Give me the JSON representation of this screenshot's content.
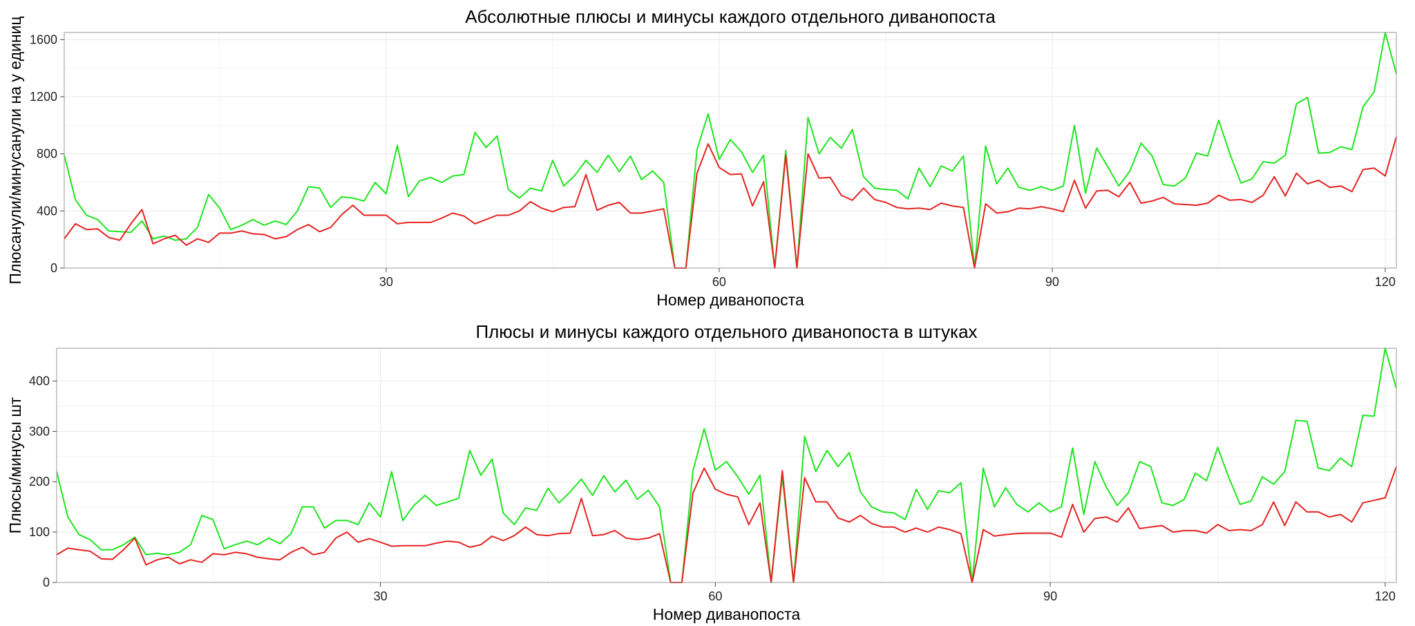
{
  "chart_data": [
    {
      "type": "line",
      "title": "Абсолютные плюсы и минусы каждого отдельного диванопоста",
      "xlabel": "Номер диванопоста",
      "ylabel": "Плюсанули/минусанули на y единиц",
      "xlim": [
        1,
        121
      ],
      "ylim": [
        0,
        1650
      ],
      "x_ticks": [
        30,
        60,
        90,
        120
      ],
      "y_ticks": [
        0,
        400,
        800,
        1200,
        1600
      ],
      "grid": true,
      "x": [
        1,
        2,
        3,
        4,
        5,
        6,
        7,
        8,
        9,
        10,
        11,
        12,
        13,
        14,
        15,
        16,
        17,
        18,
        19,
        20,
        21,
        22,
        23,
        24,
        25,
        26,
        27,
        28,
        29,
        30,
        31,
        32,
        33,
        34,
        35,
        36,
        37,
        38,
        39,
        40,
        41,
        42,
        43,
        44,
        45,
        46,
        47,
        48,
        49,
        50,
        51,
        52,
        53,
        54,
        55,
        56,
        57,
        58,
        59,
        60,
        61,
        62,
        63,
        64,
        65,
        66,
        67,
        68,
        69,
        70,
        71,
        72,
        73,
        74,
        75,
        76,
        77,
        78,
        79,
        80,
        81,
        82,
        83,
        84,
        85,
        86,
        87,
        88,
        89,
        90,
        91,
        92,
        93,
        94,
        95,
        96,
        97,
        98,
        99,
        100,
        101,
        102,
        103,
        104,
        105,
        106,
        107,
        108,
        109,
        110,
        111,
        112,
        113,
        114,
        115,
        116,
        117,
        118,
        119,
        120,
        121
      ],
      "series": [
        {
          "color": "#1ee61e",
          "values": [
            790,
            480,
            370,
            340,
            260,
            255,
            250,
            330,
            205,
            225,
            195,
            205,
            285,
            515,
            420,
            270,
            300,
            340,
            300,
            330,
            305,
            400,
            570,
            560,
            425,
            500,
            490,
            470,
            600,
            520,
            860,
            500,
            610,
            635,
            600,
            645,
            655,
            950,
            845,
            925,
            550,
            490,
            560,
            540,
            755,
            575,
            650,
            755,
            670,
            790,
            675,
            785,
            620,
            680,
            600,
            0,
            0,
            830,
            1080,
            760,
            900,
            815,
            670,
            790,
            0,
            825,
            0,
            1055,
            800,
            915,
            840,
            970,
            640,
            560,
            550,
            545,
            485,
            700,
            570,
            715,
            680,
            785,
            0,
            855,
            590,
            700,
            565,
            545,
            570,
            545,
            575,
            1000,
            525,
            840,
            710,
            575,
            680,
            875,
            785,
            585,
            575,
            630,
            805,
            785,
            1035,
            800,
            595,
            625,
            745,
            735,
            790,
            1150,
            1195,
            805,
            810,
            850,
            830,
            1130,
            1235,
            1650,
            1360
          ]
        },
        {
          "color": "#e62222",
          "values": [
            205,
            310,
            270,
            275,
            215,
            195,
            310,
            410,
            170,
            205,
            230,
            160,
            205,
            180,
            245,
            245,
            260,
            240,
            235,
            205,
            220,
            270,
            305,
            255,
            285,
            375,
            440,
            370,
            370,
            370,
            310,
            320,
            320,
            320,
            350,
            385,
            365,
            310,
            340,
            370,
            370,
            400,
            465,
            420,
            395,
            425,
            430,
            655,
            405,
            440,
            460,
            385,
            385,
            400,
            415,
            0,
            0,
            665,
            870,
            705,
            655,
            660,
            435,
            605,
            0,
            790,
            0,
            800,
            630,
            635,
            510,
            475,
            560,
            480,
            460,
            425,
            415,
            420,
            410,
            455,
            435,
            425,
            0,
            450,
            385,
            395,
            420,
            415,
            430,
            415,
            395,
            615,
            420,
            540,
            545,
            500,
            600,
            455,
            470,
            495,
            450,
            445,
            440,
            455,
            510,
            475,
            480,
            460,
            510,
            640,
            505,
            665,
            590,
            615,
            565,
            575,
            535,
            690,
            700,
            645,
            920
          ]
        }
      ]
    },
    {
      "type": "line",
      "title": "Плюсы и минусы каждого отдельного диванопоста в штуках",
      "xlabel": "Номер диванопоста",
      "ylabel": "Плюсы/минусы шт",
      "xlim": [
        1,
        121
      ],
      "ylim": [
        0,
        465
      ],
      "x_ticks": [
        30,
        60,
        90,
        120
      ],
      "y_ticks": [
        0,
        100,
        200,
        300,
        400
      ],
      "grid": true,
      "x": [
        1,
        2,
        3,
        4,
        5,
        6,
        7,
        8,
        9,
        10,
        11,
        12,
        13,
        14,
        15,
        16,
        17,
        18,
        19,
        20,
        21,
        22,
        23,
        24,
        25,
        26,
        27,
        28,
        29,
        30,
        31,
        32,
        33,
        34,
        35,
        36,
        37,
        38,
        39,
        40,
        41,
        42,
        43,
        44,
        45,
        46,
        47,
        48,
        49,
        50,
        51,
        52,
        53,
        54,
        55,
        56,
        57,
        58,
        59,
        60,
        61,
        62,
        63,
        64,
        65,
        66,
        67,
        68,
        69,
        70,
        71,
        72,
        73,
        74,
        75,
        76,
        77,
        78,
        79,
        80,
        81,
        82,
        83,
        84,
        85,
        86,
        87,
        88,
        89,
        90,
        91,
        92,
        93,
        94,
        95,
        96,
        97,
        98,
        99,
        100,
        101,
        102,
        103,
        104,
        105,
        106,
        107,
        108,
        109,
        110,
        111,
        112,
        113,
        114,
        115,
        116,
        117,
        118,
        119,
        120,
        121
      ],
      "series": [
        {
          "color": "#1ee61e",
          "values": [
            220,
            130,
            95,
            85,
            65,
            65,
            75,
            90,
            55,
            58,
            55,
            60,
            75,
            133,
            125,
            67,
            75,
            82,
            75,
            88,
            77,
            97,
            150,
            150,
            108,
            123,
            123,
            115,
            158,
            130,
            220,
            123,
            153,
            173,
            153,
            160,
            167,
            262,
            213,
            245,
            138,
            115,
            148,
            143,
            187,
            158,
            180,
            205,
            173,
            212,
            180,
            203,
            165,
            183,
            150,
            0,
            0,
            222,
            305,
            223,
            240,
            210,
            175,
            213,
            0,
            210,
            0,
            290,
            220,
            262,
            230,
            258,
            180,
            150,
            140,
            138,
            125,
            185,
            145,
            182,
            178,
            198,
            0,
            227,
            150,
            188,
            155,
            140,
            158,
            140,
            150,
            267,
            135,
            240,
            190,
            153,
            178,
            240,
            230,
            158,
            153,
            165,
            217,
            202,
            268,
            208,
            155,
            162,
            210,
            195,
            220,
            322,
            320,
            227,
            222,
            247,
            230,
            332,
            330,
            465,
            385
          ]
        },
        {
          "color": "#e62222",
          "values": [
            55,
            68,
            65,
            62,
            47,
            46,
            65,
            88,
            35,
            45,
            50,
            37,
            45,
            40,
            57,
            55,
            60,
            57,
            50,
            47,
            45,
            60,
            70,
            55,
            60,
            88,
            100,
            80,
            87,
            80,
            72,
            73,
            73,
            73,
            78,
            82,
            80,
            70,
            75,
            92,
            83,
            93,
            110,
            95,
            93,
            97,
            98,
            167,
            93,
            95,
            103,
            88,
            85,
            88,
            97,
            0,
            0,
            178,
            227,
            185,
            175,
            170,
            115,
            158,
            0,
            222,
            0,
            208,
            160,
            160,
            128,
            120,
            133,
            117,
            110,
            110,
            100,
            108,
            100,
            110,
            105,
            97,
            0,
            105,
            92,
            95,
            97,
            98,
            98,
            98,
            90,
            155,
            100,
            127,
            130,
            120,
            148,
            107,
            110,
            113,
            100,
            103,
            103,
            98,
            115,
            103,
            105,
            103,
            115,
            160,
            113,
            160,
            140,
            140,
            130,
            135,
            120,
            158,
            163,
            168,
            230
          ]
        }
      ]
    }
  ]
}
